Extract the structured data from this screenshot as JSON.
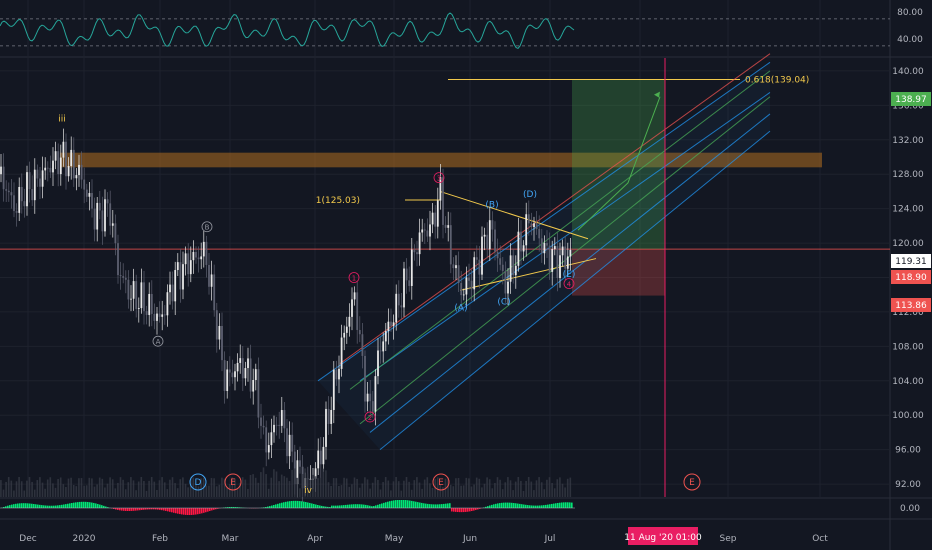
{
  "chart_data": {
    "type": "candlestick",
    "theme": "dark",
    "price_axis": {
      "ticks": [
        92,
        96,
        100,
        104,
        108,
        112,
        116,
        120,
        124,
        128,
        132,
        136,
        140
      ],
      "range": [
        90.5,
        141.5
      ]
    },
    "time_axis": {
      "labels": [
        "Dec",
        "2020",
        "Feb",
        "Mar",
        "Apr",
        "May",
        "Jun",
        "Jul",
        "Aug",
        "Sep",
        "Oct"
      ],
      "highlight": "11 Aug '20",
      "highlight_time": "01:00"
    },
    "price_badges": [
      {
        "value": "138.97",
        "color": "#4caf50"
      },
      {
        "value": "119.31",
        "color": "#ffffff"
      },
      {
        "value": "118.90",
        "color": "#ef5350"
      },
      {
        "value": "113.86",
        "color": "#ef5350"
      }
    ],
    "rsi_panel": {
      "ticks": [
        "80.00",
        "40.00"
      ],
      "range": [
        15,
        95
      ],
      "levels": [
        70,
        30
      ],
      "color": "#26a69a"
    },
    "macd_panel": {
      "tick": "0.00",
      "positive_color": "#00e676",
      "negative_color": "#ff1744"
    },
    "price_series": [
      {
        "x": 0,
        "y": 128
      },
      {
        "x": 15,
        "y": 124
      },
      {
        "x": 25,
        "y": 126
      },
      {
        "x": 35,
        "y": 127
      },
      {
        "x": 50,
        "y": 129
      },
      {
        "x": 62,
        "y": 130
      },
      {
        "x": 80,
        "y": 128
      },
      {
        "x": 95,
        "y": 123
      },
      {
        "x": 110,
        "y": 124
      },
      {
        "x": 118,
        "y": 117
      },
      {
        "x": 130,
        "y": 114
      },
      {
        "x": 145,
        "y": 113
      },
      {
        "x": 160,
        "y": 111
      },
      {
        "x": 175,
        "y": 116
      },
      {
        "x": 190,
        "y": 118
      },
      {
        "x": 205,
        "y": 119
      },
      {
        "x": 215,
        "y": 112
      },
      {
        "x": 225,
        "y": 104
      },
      {
        "x": 240,
        "y": 106
      },
      {
        "x": 255,
        "y": 104
      },
      {
        "x": 265,
        "y": 96
      },
      {
        "x": 280,
        "y": 100
      },
      {
        "x": 295,
        "y": 94
      },
      {
        "x": 308,
        "y": 92
      },
      {
        "x": 320,
        "y": 95
      },
      {
        "x": 335,
        "y": 104
      },
      {
        "x": 345,
        "y": 110
      },
      {
        "x": 355,
        "y": 114
      },
      {
        "x": 362,
        "y": 106
      },
      {
        "x": 370,
        "y": 100
      },
      {
        "x": 380,
        "y": 108
      },
      {
        "x": 395,
        "y": 112
      },
      {
        "x": 410,
        "y": 117
      },
      {
        "x": 420,
        "y": 121
      },
      {
        "x": 432,
        "y": 122
      },
      {
        "x": 440,
        "y": 126
      },
      {
        "x": 450,
        "y": 119
      },
      {
        "x": 462,
        "y": 114
      },
      {
        "x": 475,
        "y": 117
      },
      {
        "x": 490,
        "y": 122
      },
      {
        "x": 505,
        "y": 115
      },
      {
        "x": 518,
        "y": 119
      },
      {
        "x": 530,
        "y": 123
      },
      {
        "x": 545,
        "y": 119
      },
      {
        "x": 558,
        "y": 118
      },
      {
        "x": 568,
        "y": 118.5
      }
    ],
    "annotations": [
      {
        "text": "iii",
        "x": 62,
        "y": 134.5,
        "color": "#f2c94c",
        "kind": "label"
      },
      {
        "text": "1(125.03)",
        "x": 360,
        "y": 125,
        "color": "#f2c94c",
        "kind": "label"
      },
      {
        "text": "0.618(139.04)",
        "x": 745,
        "y": 139,
        "color": "#f2c94c",
        "kind": "label"
      },
      {
        "text": "A",
        "x": 158,
        "y": 108.6,
        "color": "#9598a1",
        "kind": "circle"
      },
      {
        "text": "B",
        "x": 207,
        "y": 121.9,
        "color": "#9598a1",
        "kind": "circle"
      },
      {
        "text": "1",
        "x": 354,
        "y": 116,
        "color": "#e91e63",
        "kind": "circle"
      },
      {
        "text": "2",
        "x": 370,
        "y": 99.8,
        "color": "#e91e63",
        "kind": "circle"
      },
      {
        "text": "3",
        "x": 439,
        "y": 127.6,
        "color": "#e91e63",
        "kind": "circle"
      },
      {
        "text": "4",
        "x": 569,
        "y": 115.3,
        "color": "#e91e63",
        "kind": "circle"
      },
      {
        "text": "(A)",
        "x": 461,
        "y": 112.5,
        "color": "#42a5f5",
        "kind": "label"
      },
      {
        "text": "(B)",
        "x": 492,
        "y": 124.5,
        "color": "#42a5f5",
        "kind": "label"
      },
      {
        "text": "(C)",
        "x": 504,
        "y": 113.2,
        "color": "#42a5f5",
        "kind": "label"
      },
      {
        "text": "(D)",
        "x": 530,
        "y": 125.7,
        "color": "#42a5f5",
        "kind": "label"
      },
      {
        "text": "(E)",
        "x": 569,
        "y": 116.4,
        "color": "#42a5f5",
        "kind": "label"
      },
      {
        "text": "iv",
        "x": 308,
        "y": 91.3,
        "color": "#f2c94c",
        "kind": "label"
      }
    ],
    "time_markers": [
      {
        "text": "D",
        "x": 198,
        "color": "#42a5f5"
      },
      {
        "text": "E",
        "x": 233,
        "color": "#ef5350"
      },
      {
        "text": "E",
        "x": 441,
        "color": "#ef5350"
      },
      {
        "text": "E",
        "x": 692,
        "color": "#ef5350"
      }
    ]
  }
}
